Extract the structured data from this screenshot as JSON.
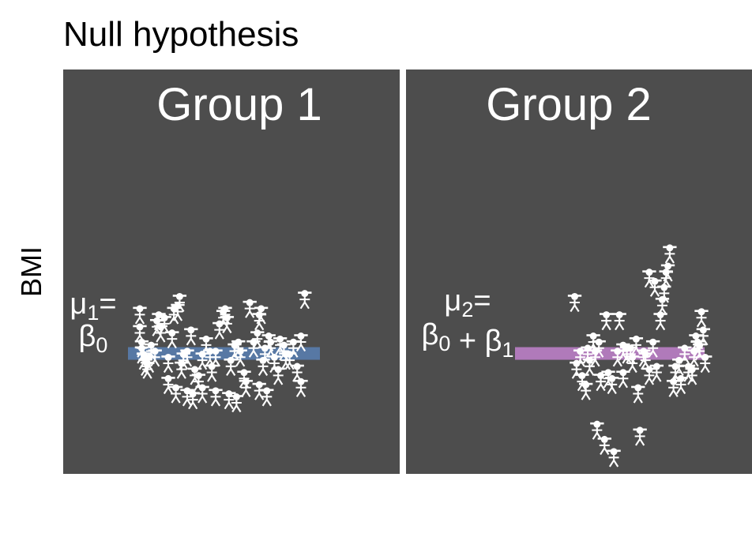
{
  "chart_data": {
    "type": "scatter",
    "title": "Null hypothesis",
    "xlabel": "",
    "ylabel": "BMI",
    "ylim": [
      0,
      100
    ],
    "grid": false,
    "legend": "none",
    "marker": "person-icon",
    "colors": {
      "panel_background": "#4d4d4d",
      "points": "#ffffff",
      "annotation_text": "#ffffff",
      "title_text": "#000000"
    },
    "panels": [
      {
        "label": "Group 1",
        "mean_value": 37,
        "mean_color": "#5778a4",
        "annotation": {
          "line1_symbol": "μ",
          "line1_sub": "1",
          "line1_tail": "=",
          "line2_parts": [
            {
              "text": "β",
              "sub": "0"
            }
          ]
        },
        "points": [
          [
            0.05,
            50
          ],
          [
            0.05,
            44
          ],
          [
            0.06,
            39
          ],
          [
            0.06,
            37
          ],
          [
            0.07,
            35
          ],
          [
            0.08,
            33
          ],
          [
            0.09,
            32
          ],
          [
            0.1,
            34
          ],
          [
            0.11,
            38
          ],
          [
            0.13,
            36
          ],
          [
            0.14,
            46
          ],
          [
            0.15,
            48
          ],
          [
            0.16,
            44
          ],
          [
            0.18,
            47
          ],
          [
            0.2,
            34
          ],
          [
            0.22,
            42
          ],
          [
            0.23,
            50
          ],
          [
            0.25,
            51
          ],
          [
            0.26,
            54
          ],
          [
            0.27,
            32
          ],
          [
            0.28,
            35
          ],
          [
            0.3,
            36
          ],
          [
            0.32,
            43
          ],
          [
            0.34,
            30
          ],
          [
            0.36,
            28
          ],
          [
            0.38,
            35
          ],
          [
            0.4,
            40
          ],
          [
            0.42,
            36
          ],
          [
            0.43,
            31
          ],
          [
            0.45,
            36
          ],
          [
            0.47,
            45
          ],
          [
            0.49,
            49
          ],
          [
            0.5,
            50
          ],
          [
            0.51,
            47
          ],
          [
            0.53,
            33
          ],
          [
            0.55,
            38
          ],
          [
            0.57,
            39
          ],
          [
            0.6,
            29
          ],
          [
            0.61,
            26
          ],
          [
            0.63,
            52
          ],
          [
            0.65,
            39
          ],
          [
            0.67,
            42
          ],
          [
            0.68,
            48
          ],
          [
            0.69,
            50
          ],
          [
            0.71,
            37
          ],
          [
            0.73,
            41
          ],
          [
            0.74,
            39
          ],
          [
            0.76,
            34
          ],
          [
            0.78,
            30
          ],
          [
            0.79,
            40
          ],
          [
            0.81,
            38
          ],
          [
            0.82,
            35
          ],
          [
            0.84,
            35
          ],
          [
            0.86,
            39
          ],
          [
            0.88,
            31
          ],
          [
            0.9,
            26
          ],
          [
            0.2,
            27
          ],
          [
            0.24,
            24
          ],
          [
            0.3,
            23
          ],
          [
            0.33,
            22
          ],
          [
            0.38,
            24
          ],
          [
            0.45,
            23
          ],
          [
            0.52,
            22
          ],
          [
            0.56,
            21
          ],
          [
            0.68,
            25
          ],
          [
            0.72,
            23
          ],
          [
            0.92,
            55
          ],
          [
            0.9,
            41
          ],
          [
            0.7,
            33
          ],
          [
            0.58,
            36
          ]
        ]
      },
      {
        "label": "Group 2",
        "mean_value": 37,
        "mean_color": "#b07aba",
        "annotation": {
          "line1_symbol": "μ",
          "line1_sub": "2",
          "line1_tail": "=",
          "line2_parts": [
            {
              "text": "β",
              "sub": "0"
            },
            {
              "text": " + ",
              "sub": ""
            },
            {
              "text": "β",
              "sub": "1"
            }
          ]
        },
        "points": [
          [
            0.32,
            54
          ],
          [
            0.33,
            32
          ],
          [
            0.35,
            36
          ],
          [
            0.36,
            28
          ],
          [
            0.38,
            25
          ],
          [
            0.39,
            37
          ],
          [
            0.4,
            33
          ],
          [
            0.42,
            41
          ],
          [
            0.43,
            36
          ],
          [
            0.44,
            12
          ],
          [
            0.46,
            28
          ],
          [
            0.48,
            7
          ],
          [
            0.49,
            48
          ],
          [
            0.5,
            29
          ],
          [
            0.52,
            27
          ],
          [
            0.53,
            3
          ],
          [
            0.55,
            36
          ],
          [
            0.56,
            48
          ],
          [
            0.58,
            29
          ],
          [
            0.6,
            37
          ],
          [
            0.62,
            37
          ],
          [
            0.63,
            34
          ],
          [
            0.65,
            40
          ],
          [
            0.66,
            24
          ],
          [
            0.67,
            10
          ],
          [
            0.69,
            36
          ],
          [
            0.7,
            35
          ],
          [
            0.72,
            30
          ],
          [
            0.74,
            39
          ],
          [
            0.75,
            59
          ],
          [
            0.76,
            31
          ],
          [
            0.78,
            48
          ],
          [
            0.79,
            53
          ],
          [
            0.8,
            57
          ],
          [
            0.81,
            62
          ],
          [
            0.82,
            64
          ],
          [
            0.83,
            70
          ],
          [
            0.85,
            26
          ],
          [
            0.86,
            31
          ],
          [
            0.88,
            33
          ],
          [
            0.89,
            27
          ],
          [
            0.91,
            37
          ],
          [
            0.93,
            31
          ],
          [
            0.95,
            30
          ],
          [
            0.96,
            36
          ],
          [
            0.97,
            41
          ],
          [
            0.98,
            39
          ],
          [
            0.99,
            38
          ],
          [
            1.0,
            49
          ],
          [
            1.01,
            43
          ],
          [
            1.02,
            34
          ],
          [
            0.58,
            38
          ],
          [
            0.72,
            62
          ],
          [
            0.45,
            39
          ]
        ]
      }
    ]
  }
}
